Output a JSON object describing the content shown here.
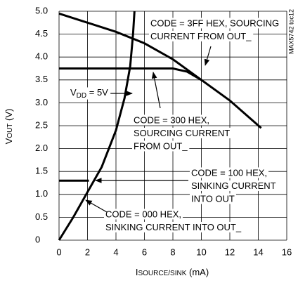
{
  "chart_data": {
    "type": "line",
    "xlabel": {
      "main": "I",
      "sub": "SOURCE/SINK",
      "rest": " (mA)"
    },
    "ylabel": {
      "main": "V",
      "sub": "OUT",
      "rest": " (V)"
    },
    "watermark": "MAX5742 toc12",
    "xlim": [
      0,
      16
    ],
    "ylim": [
      0,
      5
    ],
    "xticks": [
      0,
      2,
      4,
      6,
      8,
      10,
      12,
      14,
      16
    ],
    "yticks": [
      0,
      0.5,
      {
        "value": 1,
        "label": "1.0"
      },
      1.5,
      {
        "value": 2,
        "label": "2.0"
      },
      2.5,
      {
        "value": 3,
        "label": "3.0"
      },
      3.5,
      {
        "value": 4,
        "label": "4.0"
      },
      4.5,
      {
        "value": 5,
        "label": "5.0"
      }
    ],
    "grid": true,
    "series": [
      {
        "color": "#000000",
        "x": [
          0,
          2,
          4,
          6,
          8,
          10,
          12,
          14.2
        ],
        "values": [
          4.95,
          4.75,
          4.55,
          4.3,
          3.95,
          3.5,
          3.05,
          2.45
        ]
      },
      {
        "color": "#000000",
        "x": [
          0,
          8,
          9,
          10
        ],
        "values": [
          3.75,
          3.75,
          3.68,
          3.5
        ]
      },
      {
        "color": "#000000",
        "x": [
          0,
          2.1
        ],
        "values": [
          1.3,
          1.3
        ]
      },
      {
        "color": "#000000",
        "x": [
          0,
          1,
          2,
          3,
          4,
          4.6,
          5,
          5.2,
          5.3
        ],
        "values": [
          0,
          0.5,
          1.05,
          1.6,
          2.4,
          3.1,
          3.8,
          4.5,
          5.0
        ]
      }
    ],
    "annotations": [
      {
        "lines": [
          "CODE = 3FF HEX, SOURCING",
          "CURRENT FROM OUT_"
        ]
      },
      {
        "lines": [
          "CODE = 300 HEX,",
          "SOURCING CURRENT",
          "FROM OUT_"
        ]
      },
      {
        "lines": [
          "CODE = 100 HEX,",
          "SINKING CURRENT",
          "INTO OUT"
        ]
      },
      {
        "lines": [
          "CODE = 000 HEX,",
          "SINKING CURRENT INTO OUT_"
        ]
      }
    ],
    "vdd": {
      "main": "V",
      "sub": "DD",
      "rest": " = 5V"
    }
  }
}
